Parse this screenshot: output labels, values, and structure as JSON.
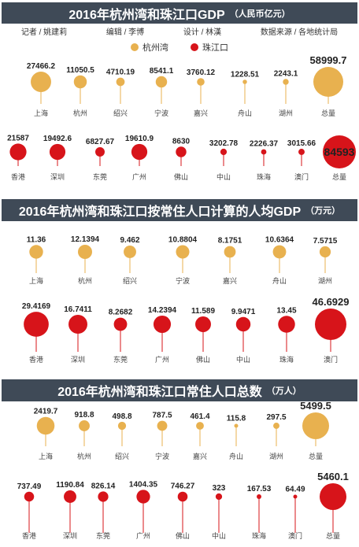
{
  "section1": {
    "title_main": "2016年杭州湾和珠江口GDP",
    "title_unit": "（人民币亿元）",
    "credits": [
      "记者 / 姚建莉",
      "编辑 / 李博",
      "设计 / 林漢",
      "数据来源 / 各地统计局"
    ],
    "legend": [
      {
        "label": "杭州湾",
        "color": "#e8b14f"
      },
      {
        "label": "珠江口",
        "color": "#d7141a"
      }
    ]
  },
  "section2": {
    "title_main": "2016年杭州湾和珠江口按常住人口计算的人均GDP",
    "title_unit": "（万元）"
  },
  "section3": {
    "title_main": "2016年杭州湾和珠江口常住人口总数",
    "title_unit": "（万人）"
  },
  "colors": {
    "hz": "#e8b14f",
    "zj": "#d7141a",
    "band": "#3f4a57"
  },
  "chart_data": [
    {
      "type": "bubble",
      "group": "杭州湾",
      "metric": "GDP",
      "categories": [
        "上海",
        "杭州",
        "绍兴",
        "宁波",
        "嘉兴",
        "舟山",
        "湖州",
        "总量"
      ],
      "values": [
        27466.2,
        11050.5,
        4710.19,
        8541.1,
        3760.12,
        1228.51,
        2243.1,
        58999.7
      ],
      "labels": [
        "27466.2",
        "11050.5",
        "4710.19",
        "8541.1",
        "3760.12",
        "1228.51",
        "2243.1",
        "58999.7"
      ]
    },
    {
      "type": "bubble",
      "group": "珠江口",
      "metric": "GDP",
      "categories": [
        "香港",
        "深圳",
        "东莞",
        "广州",
        "佛山",
        "中山",
        "珠海",
        "澳门",
        "总量"
      ],
      "values": [
        21587,
        19492.6,
        6827.67,
        19610.9,
        8630,
        3202.78,
        2226.37,
        3015.66,
        84593
      ],
      "labels": [
        "21587",
        "19492.6",
        "6827.67",
        "19610.9",
        "8630",
        "3202.78",
        "2226.37",
        "3015.66",
        "84593"
      ]
    },
    {
      "type": "bubble",
      "group": "杭州湾",
      "metric": "人均GDP",
      "categories": [
        "上海",
        "杭州",
        "绍兴",
        "宁波",
        "嘉兴",
        "舟山",
        "湖州"
      ],
      "values": [
        11.36,
        12.1394,
        9.462,
        10.8804,
        8.1751,
        10.6364,
        7.5715
      ],
      "labels": [
        "11.36",
        "12.1394",
        "9.462",
        "10.8804",
        "8.1751",
        "10.6364",
        "7.5715"
      ]
    },
    {
      "type": "bubble",
      "group": "珠江口",
      "metric": "人均GDP",
      "categories": [
        "香港",
        "深圳",
        "东莞",
        "广州",
        "佛山",
        "中山",
        "珠海",
        "澳门"
      ],
      "values": [
        29.4169,
        16.7411,
        8.2682,
        14.2394,
        11.589,
        9.9471,
        13.45,
        46.6929
      ],
      "labels": [
        "29.4169",
        "16.7411",
        "8.2682",
        "14.2394",
        "11.589",
        "9.9471",
        "13.45",
        "46.6929"
      ]
    },
    {
      "type": "bubble",
      "group": "杭州湾",
      "metric": "常住人口",
      "categories": [
        "上海",
        "杭州",
        "绍兴",
        "宁波",
        "嘉兴",
        "舟山",
        "湖州",
        "总量"
      ],
      "values": [
        2419.7,
        918.8,
        498.8,
        787.5,
        461.4,
        115.8,
        297.5,
        5499.5
      ],
      "labels": [
        "2419.7",
        "918.8",
        "498.8",
        "787.5",
        "461.4",
        "115.8",
        "297.5",
        "5499.5"
      ]
    },
    {
      "type": "bubble",
      "group": "珠江口",
      "metric": "常住人口",
      "categories": [
        "香港",
        "深圳",
        "东莞",
        "广州",
        "佛山",
        "中山",
        "珠海",
        "澳门",
        "总量"
      ],
      "values": [
        737.49,
        1190.84,
        826.14,
        1404.35,
        746.27,
        323,
        167.53,
        64.49,
        5460.1
      ],
      "labels": [
        "737.49",
        "1190.84",
        "826.14",
        "1404.35",
        "746.27",
        "323",
        "167.53",
        "64.49",
        "5460.1"
      ]
    }
  ]
}
